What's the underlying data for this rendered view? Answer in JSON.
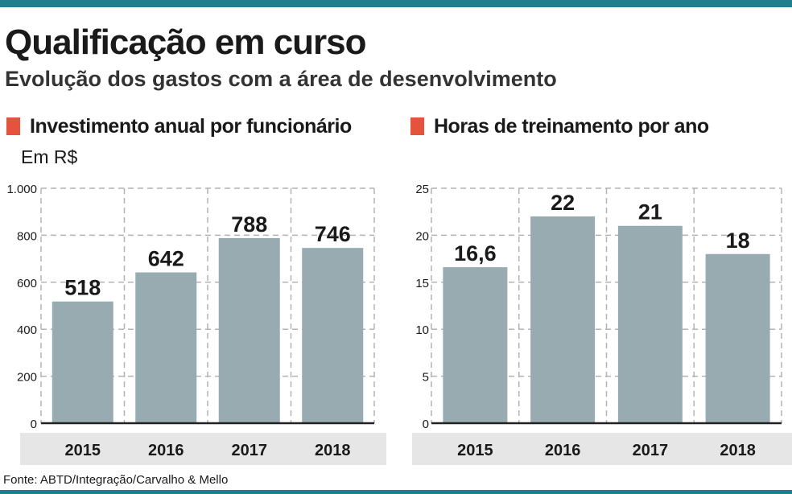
{
  "title": "Qualificação em curso",
  "subtitle": "Evolução dos gastos com a área de desenvolvimento",
  "source": "Fonte: ABTD/Integração/Carvalho & Mello",
  "colors": {
    "bar": "#97abb0",
    "accent": "#e5533d",
    "band": "#e6e6e6",
    "rule": "#1f7f8c",
    "grid": "#b3b3b3"
  },
  "chart_data": [
    {
      "type": "bar",
      "title": "Investimento anual por funcionário",
      "unit": "Em R$",
      "categories": [
        "2015",
        "2016",
        "2017",
        "2018"
      ],
      "values": [
        518,
        642,
        788,
        746
      ],
      "value_labels": [
        "518",
        "642",
        "788",
        "746"
      ],
      "yticks": [
        0,
        200,
        400,
        600,
        800,
        1000
      ],
      "ytick_labels": [
        "0",
        "200",
        "400",
        "600",
        "800",
        "1.000"
      ],
      "ylim": [
        0,
        1000
      ],
      "grid": true
    },
    {
      "type": "bar",
      "title": "Horas de treinamento por ano",
      "categories": [
        "2015",
        "2016",
        "2017",
        "2018"
      ],
      "values": [
        16.6,
        22,
        21,
        18
      ],
      "value_labels": [
        "16,6",
        "22",
        "21",
        "18"
      ],
      "yticks": [
        0,
        5,
        10,
        15,
        20,
        25
      ],
      "ytick_labels": [
        "0",
        "5",
        "10",
        "15",
        "20",
        "25"
      ],
      "ylim": [
        0,
        25
      ],
      "grid": true
    }
  ]
}
